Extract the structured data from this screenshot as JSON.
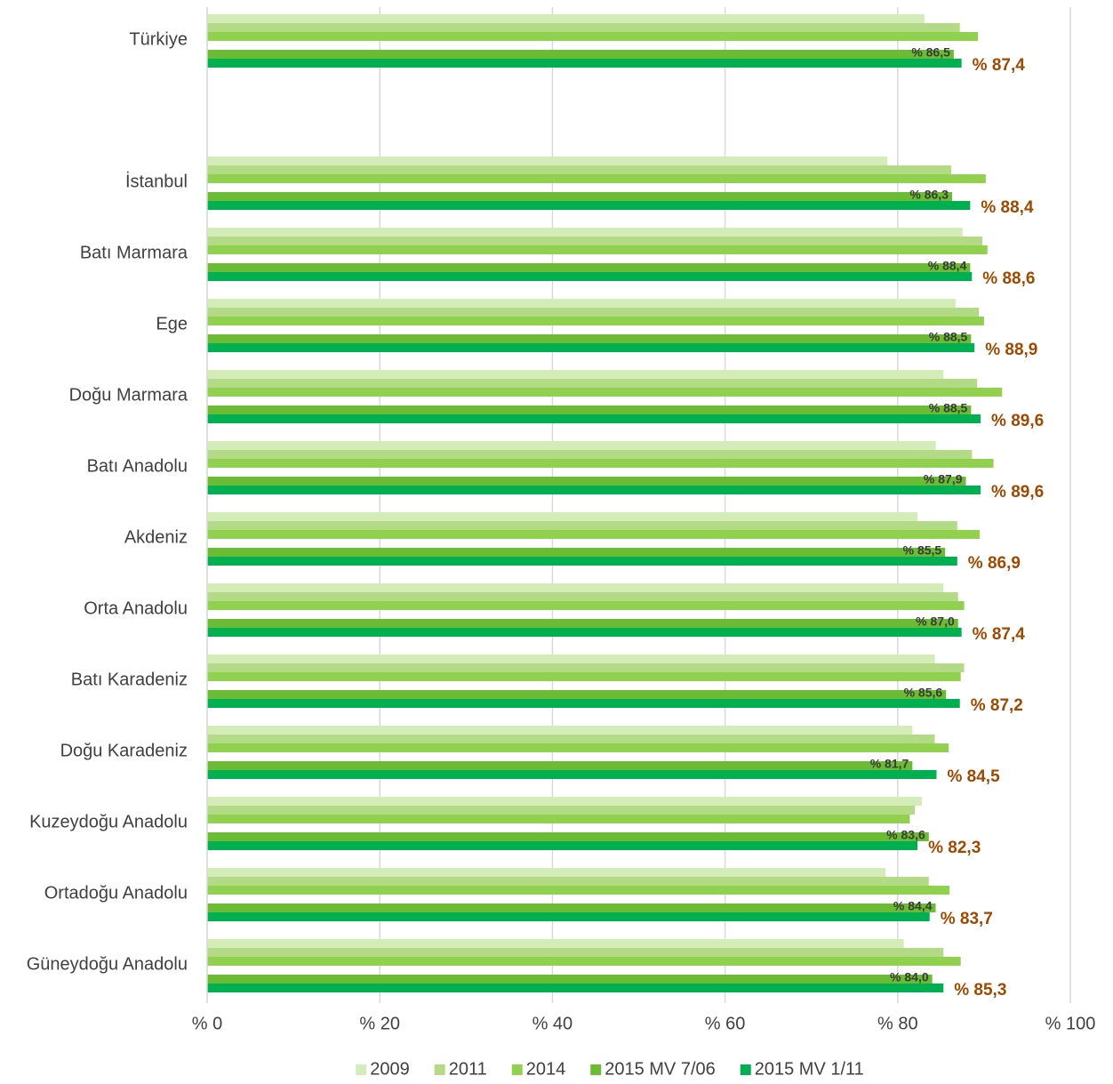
{
  "chart_data": {
    "type": "barh",
    "categories": [
      "Türkiye",
      null,
      "İstanbul",
      "Batı Marmara",
      "Ege",
      "Doğu Marmara",
      "Batı Anadolu",
      "Akdeniz",
      "Orta Anadolu",
      "Batı Karadeniz",
      "Doğu Karadeniz",
      "Kuzeydoğu Anadolu",
      "Ortadoğu Anadolu",
      "Güneydoğu Anadolu"
    ],
    "series": [
      {
        "name": "2009",
        "color": "#d4ecb8",
        "values": [
          83.1,
          null,
          78.8,
          87.5,
          86.7,
          85.3,
          84.4,
          82.3,
          85.3,
          84.3,
          81.7,
          82.8,
          78.6,
          80.7
        ]
      },
      {
        "name": "2011",
        "color": "#b3db86",
        "values": [
          87.2,
          null,
          86.2,
          89.8,
          89.4,
          89.2,
          88.6,
          86.9,
          87.0,
          87.7,
          84.3,
          82.0,
          83.6,
          85.3
        ]
      },
      {
        "name": "2014",
        "color": "#92d050",
        "values": [
          89.3,
          null,
          90.2,
          90.4,
          90.0,
          92.1,
          91.1,
          89.5,
          87.7,
          87.3,
          85.9,
          81.4,
          86.0,
          87.3
        ]
      },
      {
        "name": "2015 MV 7/06",
        "color": "#6cbb34",
        "values": [
          86.5,
          null,
          86.3,
          88.4,
          88.5,
          88.5,
          87.9,
          85.5,
          87.0,
          85.6,
          81.7,
          83.6,
          84.4,
          84.0
        ],
        "value_labels": [
          "% 86,5",
          null,
          "% 86,3",
          "% 88,4",
          "% 88,5",
          "% 88,5",
          "% 87,9",
          "% 85,5",
          "% 87,0",
          "% 85,6",
          "% 81,7",
          "% 83,6",
          "% 84,4",
          "% 84,0"
        ]
      },
      {
        "name": "2015 MV 1/11",
        "color": "#00b050",
        "values": [
          87.4,
          null,
          88.4,
          88.6,
          88.9,
          89.6,
          89.6,
          86.9,
          87.4,
          87.2,
          84.5,
          82.3,
          83.7,
          85.3
        ],
        "value_labels": [
          "% 87,4",
          null,
          "% 88,4",
          "% 88,6",
          "% 88,9",
          "% 89,6",
          "% 89,6",
          "% 86,9",
          "% 87,4",
          "% 87,2",
          "% 84,5",
          "% 82,3",
          "% 83,7",
          "% 85,3"
        ]
      }
    ],
    "xlim": [
      0,
      100
    ],
    "xticks": [
      {
        "value": 0,
        "label": "% 0"
      },
      {
        "value": 20,
        "label": "% 20"
      },
      {
        "value": 40,
        "label": "% 40"
      },
      {
        "value": 60,
        "label": "% 60"
      },
      {
        "value": 80,
        "label": "% 80"
      },
      {
        "value": 100,
        "label": "% 100"
      }
    ],
    "grid": true,
    "legend": "bottom"
  }
}
